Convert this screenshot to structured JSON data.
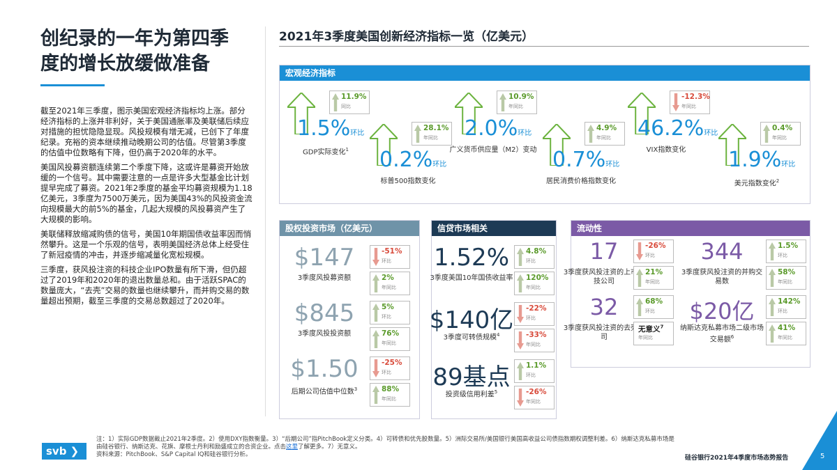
{
  "header": {
    "title_lines": [
      "创纪录的一年为第四季",
      "度的增长放缓做准备"
    ]
  },
  "body": {
    "paragraphs": [
      "截至2021年三季度，图示美国宏观经济指标均上涨。部分经济指标的上涨并非利好，关于美国通胀率及美联储后续应对措施的担忧隐隐显现。风投规模有增无减，已创下了年度纪录。充裕的资本继续推动晚期公司的估值。尽管第3季度的估值中位数略有下降，但仍高于2020年的水平。",
      "美国风投募资额连续第二个季度下降，这或许是募资开始放缓的一个信号。其中需要注意的一点是许多大型基金比计划提早完成了募资。2021年2季度的基金平均募资规模为1.18亿美元，3季度为7500万美元，因为美国43%的风投资金流向规模最大的前5%的基金，几起大规模的风投募资产生了大规模的影响。",
      "美联储释放缩减购债的信号，美国10年期国债收益率因而悄然攀升。这是一个乐观的信号，表明美国经济总体上经受住了新冠疫情的冲击，并逐步缩减量化宽松规模。",
      "三季度，获风投注资的科技企业IPO数量有所下滑，但仍超过了2019年和2020年的退出数量总和。由于活跃SPAC的数量庞大，“去壳”交易的数量也继续攀升，而并购交易的数量超出预期，截至三季度的交易总数超过了2020年。"
    ]
  },
  "dashboard": {
    "title": "2021年3季度美国创新经济指标一览（亿美元）",
    "panels": [
      {
        "title": "宏观经济指标",
        "items": [
          {
            "value": "1.5%",
            "unit": "环比",
            "label": "GDP实际变化",
            "note": "1",
            "changes": [
              {
                "value": "11.9%",
                "label": "同比"
              }
            ]
          },
          {
            "value": "0.2%",
            "unit": "环比",
            "label": "标普500指数变化",
            "changes": [
              {
                "value": "28.1%",
                "label": "年同比"
              }
            ]
          },
          {
            "value": "2.0%",
            "unit": "环比",
            "label": "广义货币供应量（M2）变动",
            "changes": [
              {
                "value": "10.9%",
                "label": "年同比"
              }
            ]
          },
          {
            "value": "0.7%",
            "unit": "环比",
            "label": "居民消费价格指数变化",
            "changes": [
              {
                "value": "4.9%",
                "label": "年同比"
              }
            ]
          },
          {
            "value": "46.2%",
            "unit": "环比",
            "label": "VIX指数变化",
            "changes": [
              {
                "value": "-12.3%",
                "label": "年同比"
              }
            ]
          },
          {
            "value": "1.9%",
            "unit": "环比",
            "label": "美元指数变化",
            "note": "2",
            "changes": [
              {
                "value": "0.4%",
                "label": "年同比"
              }
            ]
          }
        ]
      },
      {
        "title": "股权投资市场（亿美元）",
        "items": [
          {
            "value": "$147",
            "label": "3季度风投募资额",
            "changes": [
              {
                "value": "-51%",
                "label": "环比"
              },
              {
                "value": "2%",
                "label": "年同比"
              }
            ]
          },
          {
            "value": "$845",
            "label": "3季度风投投资额",
            "changes": [
              {
                "value": "5%",
                "label": "环比"
              },
              {
                "value": "76%",
                "label": "年同比"
              }
            ]
          },
          {
            "value": "$1.50",
            "label": "后期公司估值中位数",
            "note": "3",
            "changes": [
              {
                "value": "-25%",
                "label": "环比"
              },
              {
                "value": "88%",
                "label": "年同比"
              }
            ]
          }
        ]
      },
      {
        "title": "信贷市场相关",
        "items": [
          {
            "value": "1.52%",
            "label": "3季度美国10年国债收益率",
            "changes": [
              {
                "value": "4.8%",
                "label": "环比"
              },
              {
                "value": "120%",
                "label": "年同比"
              }
            ]
          },
          {
            "value": "$140亿",
            "label": "3季度可转债规模",
            "note": "4",
            "changes": [
              {
                "value": "-22%",
                "label": "环比"
              },
              {
                "value": "-33%",
                "label": "年同比"
              }
            ]
          },
          {
            "value": "89基点",
            "label": "投资级信用利差",
            "note": "5",
            "changes": [
              {
                "value": "1.1%",
                "label": "环比"
              },
              {
                "value": "-26%",
                "label": "年同比"
              }
            ]
          }
        ]
      },
      {
        "title": "流动性",
        "items": [
          {
            "value": "17",
            "label": "3季度获风投注资的上市科技公司",
            "changes": [
              {
                "value": "-26%",
                "label": "环比"
              },
              {
                "value": "21%",
                "label": "年同比"
              }
            ]
          },
          {
            "value": "344",
            "label": "3季度获风投注资的并购交易数",
            "changes": [
              {
                "value": "1.5%",
                "label": "环比"
              },
              {
                "value": "58%",
                "label": "年同比"
              }
            ]
          },
          {
            "value": "32",
            "label": "3季度获风投注资的去壳公司",
            "changes": [
              {
                "value": "68%",
                "label": "环比"
              },
              {
                "value": "无意义",
                "note": "7",
                "label": "年同比"
              }
            ]
          },
          {
            "value": "$20亿",
            "label": "纳斯达克私募市场二级市场交易额",
            "note": "6",
            "changes": [
              {
                "value": "142%",
                "label": "环比"
              },
              {
                "value": "41%",
                "label": "年同比"
              }
            ]
          }
        ]
      }
    ]
  },
  "footer": {
    "logo": "svb",
    "notes_before": "注：1）实际GDP数据截止2021年2季度。2）使用DXY指数衡量。3）“后期公司”指PitchBook定义分类。4）可转债和优先股数量。5）洲际交易所/美国银行美国高收益公司债指数期权调整利差。6）纳斯达克私募市场是由硅谷银行、纳斯达克、花旗、摩根士丹利和励盛成立的合资企业。点击",
    "notes_link": "这里",
    "notes_after": "了解更多。7）无意义。",
    "source": "资料来源：PitchBook、S&P Capital IQ和硅谷银行分析。",
    "report": "硅谷银行2021年4季度市场态势报告",
    "page": "5"
  }
}
